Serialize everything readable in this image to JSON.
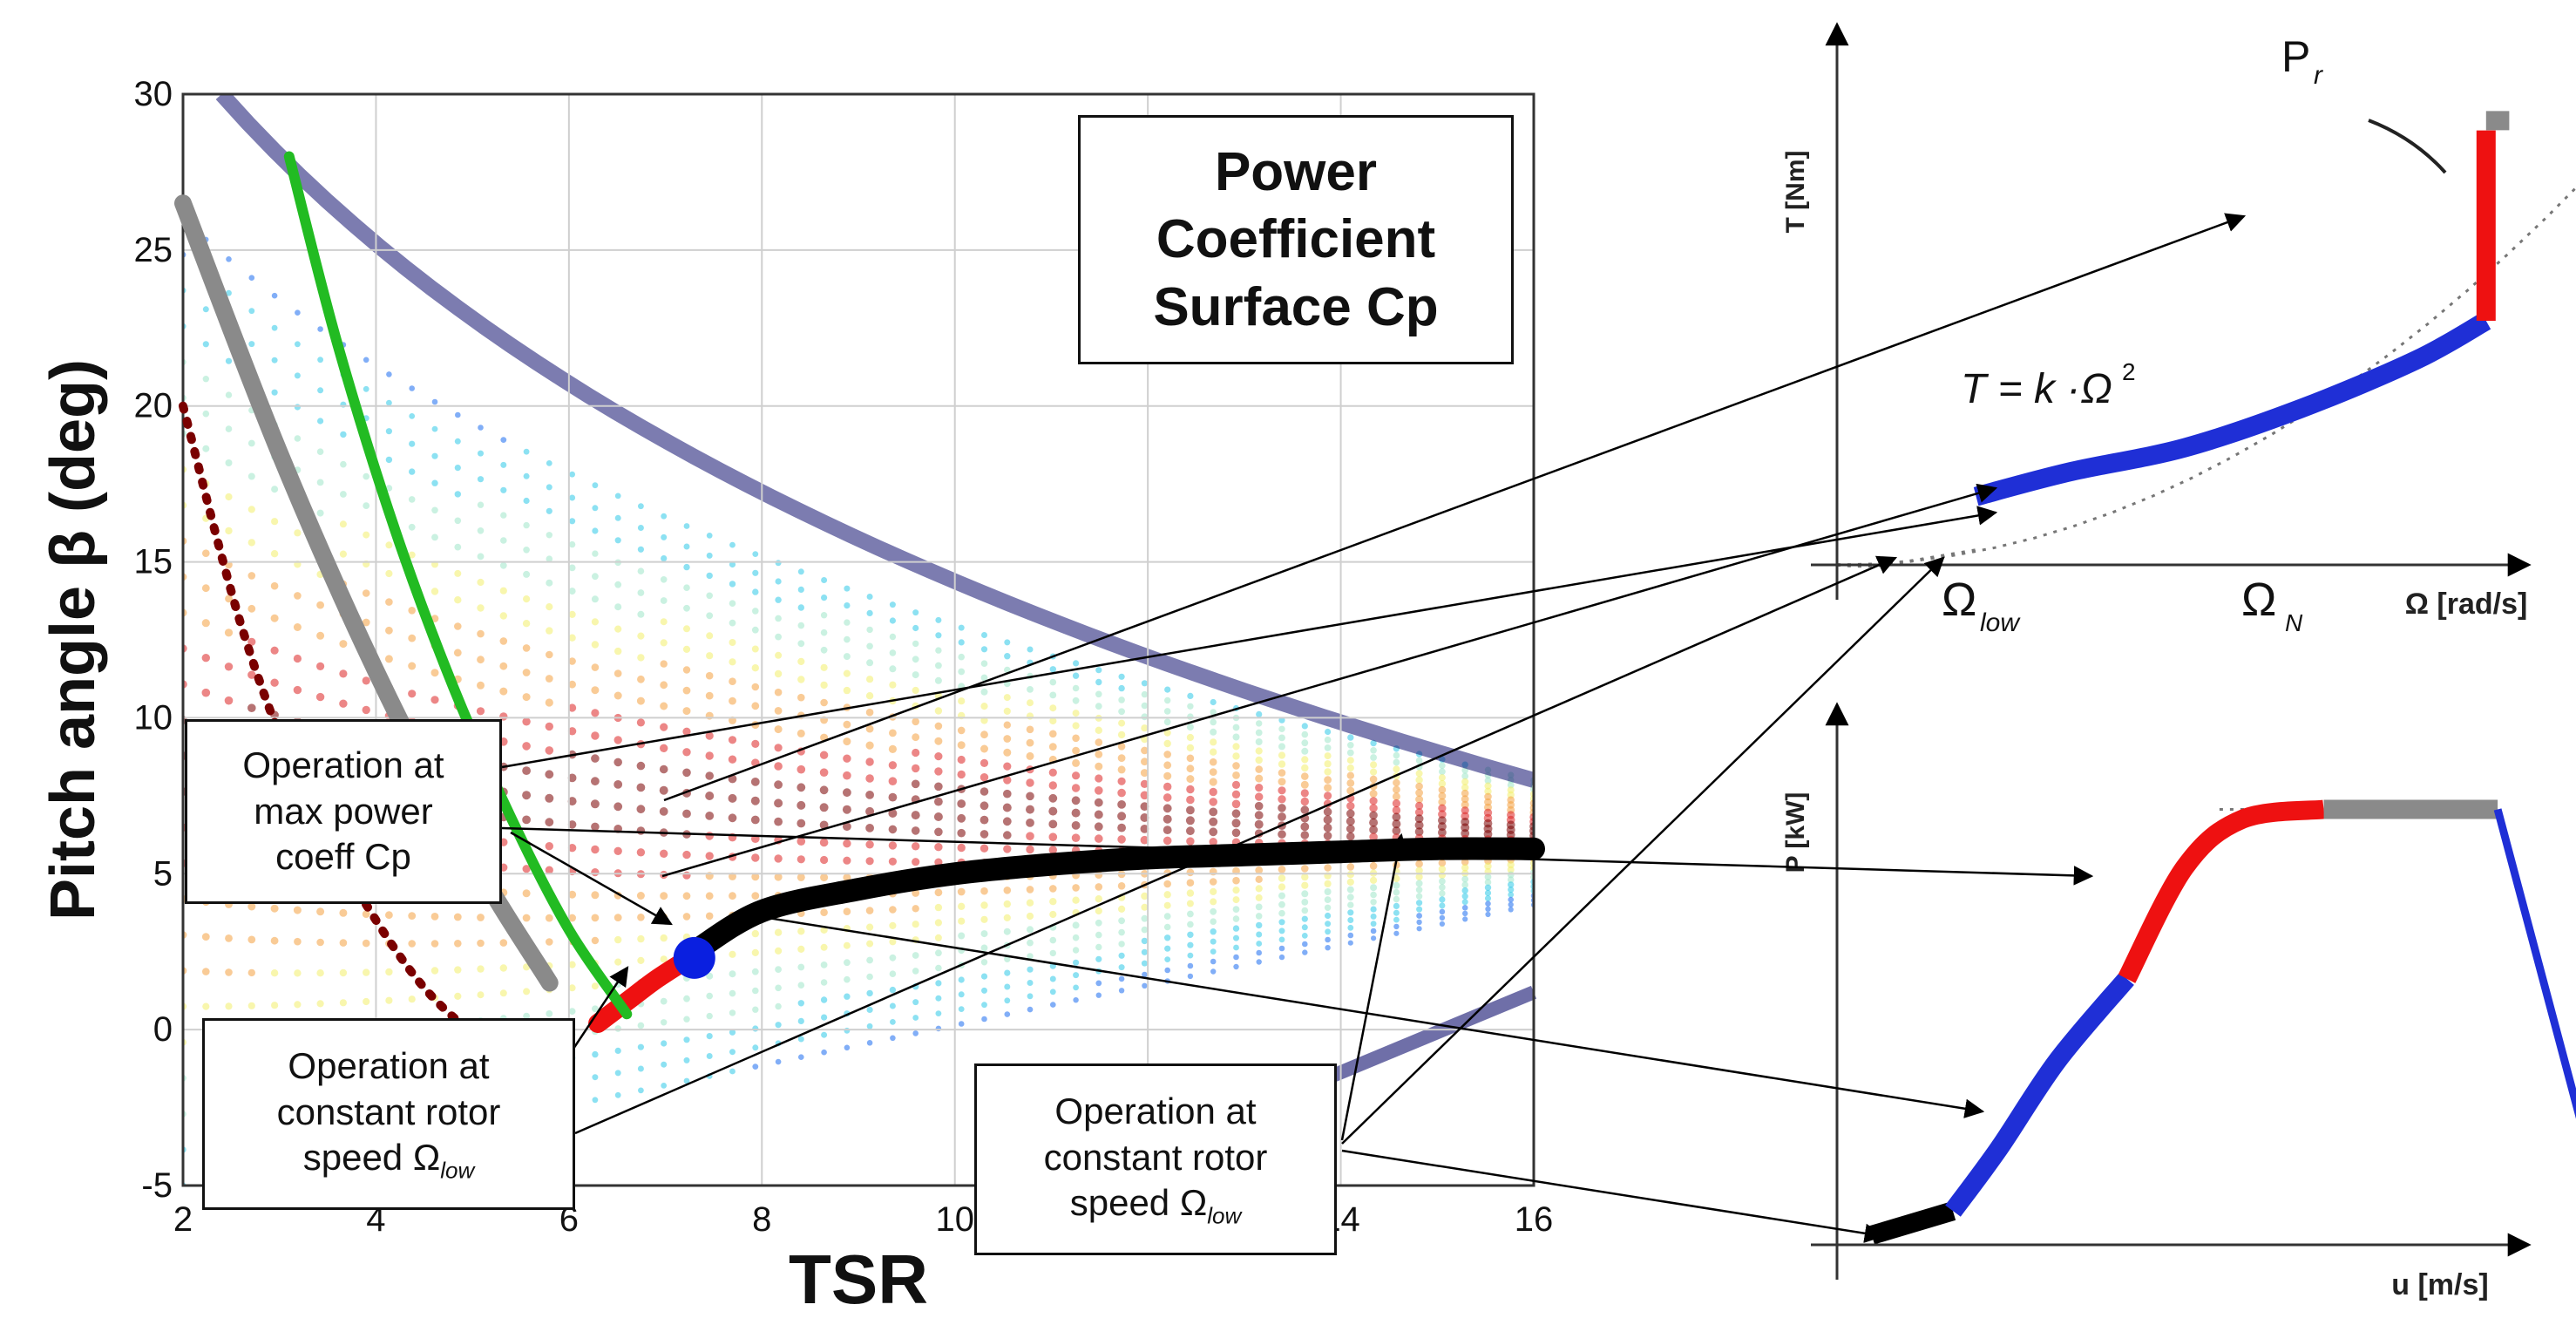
{
  "colors": {
    "blue_line": "#1f2fd6",
    "red_line": "#ee1111",
    "gray_line": "#8a8a8a",
    "black_line": "#000000",
    "green_line": "#22bb22",
    "maroon_line": "#7a0000",
    "blue_dot": "#0a1fe0"
  },
  "labels": {
    "cp_box": [
      "Power",
      "Coefficient",
      "Surface Cp"
    ],
    "max_power_box": [
      "Operation at",
      "max power",
      "coeff Cp"
    ],
    "const_speed_box_1": [
      "Operation at",
      "constant rotor",
      "speed Ω"
    ],
    "const_speed_box_2": [
      "Operation at",
      "constant rotor",
      "speed Ω"
    ],
    "subscript_low": "low",
    "eq_T": "T = k ·Ω",
    "eq_sup": "2",
    "torque_P": "P",
    "torque_P_sub": "r",
    "omega_low": "Ω",
    "omega_low_sub": "low",
    "omega_N": "Ω",
    "omega_N_sub": "N"
  },
  "chart_data": [
    {
      "type": "line",
      "title": "",
      "xlabel": "TSR",
      "ylabel": "Pitch angle β (deg)",
      "xlim": [
        2,
        16
      ],
      "ylim": [
        -5,
        30
      ],
      "x_ticks": [
        "2",
        "4",
        "6",
        "8",
        "10",
        "12",
        "14",
        "16"
      ],
      "y_ticks": [
        "-5",
        "0",
        "5",
        "10",
        "15",
        "20",
        "25",
        "30"
      ],
      "grid": true,
      "series": [
        {
          "x": [
            6.3,
            6.6,
            6.9,
            7.2
          ],
          "y": [
            0.2,
            0.9,
            1.6,
            2.2
          ]
        },
        {
          "x": [
            7.3,
            8,
            9,
            10,
            11,
            12,
            13,
            14,
            15,
            16
          ],
          "y": [
            2.5,
            3.8,
            4.5,
            5.0,
            5.3,
            5.5,
            5.6,
            5.7,
            5.8,
            5.8
          ]
        },
        {
          "x": [
            2,
            3,
            4,
            5,
            5.8
          ],
          "y": [
            26.5,
            18.5,
            11.5,
            5.5,
            1.5
          ]
        },
        {
          "x": [
            3.1,
            3.6,
            4.2,
            4.8,
            5.4,
            6.0,
            6.6
          ],
          "y": [
            28.0,
            22.0,
            16.0,
            11.0,
            6.8,
            3.2,
            0.5
          ]
        },
        {
          "x": [
            2,
            2.6,
            3.2,
            3.9,
            4.6,
            5.3,
            6.0
          ],
          "y": [
            20.0,
            13.0,
            8.0,
            4.0,
            1.0,
            -0.5,
            0.0
          ]
        }
      ],
      "points": [
        {
          "x": 7.3,
          "y": 2.3
        }
      ]
    },
    {
      "type": "line",
      "title": "",
      "xlabel": "Ω [rad/s]",
      "ylabel": "T [Nm]",
      "series": [
        {
          "x": [
            0.0,
            0.04,
            0.12
          ],
          "y": [
            0.0,
            0.0,
            0.03
          ]
        },
        {
          "x": [
            0.12,
            0.2,
            0.3,
            0.4,
            0.5,
            0.56
          ],
          "y": [
            0.14,
            0.19,
            0.24,
            0.32,
            0.42,
            0.5
          ]
        },
        {
          "x": [
            0.56,
            0.56
          ],
          "y": [
            0.5,
            0.89
          ]
        },
        {
          "x": [
            0.56,
            0.58
          ],
          "y": [
            0.91,
            0.91
          ]
        }
      ]
    },
    {
      "type": "line",
      "title": "",
      "xlabel": "u [m/s]",
      "ylabel": "P [kW]",
      "series": [
        {
          "x": [
            0.03,
            0.1
          ],
          "y": [
            0.02,
            0.07
          ]
        },
        {
          "x": [
            0.1,
            0.14,
            0.19,
            0.25
          ],
          "y": [
            0.07,
            0.2,
            0.38,
            0.55
          ]
        },
        {
          "x": [
            0.25,
            0.3,
            0.35,
            0.42
          ],
          "y": [
            0.55,
            0.78,
            0.88,
            0.9
          ]
        },
        {
          "x": [
            0.42,
            0.57
          ],
          "y": [
            0.9,
            0.9
          ]
        },
        {
          "x": [
            0.57,
            0.67
          ],
          "y": [
            0.9,
            0.0
          ]
        }
      ]
    }
  ]
}
